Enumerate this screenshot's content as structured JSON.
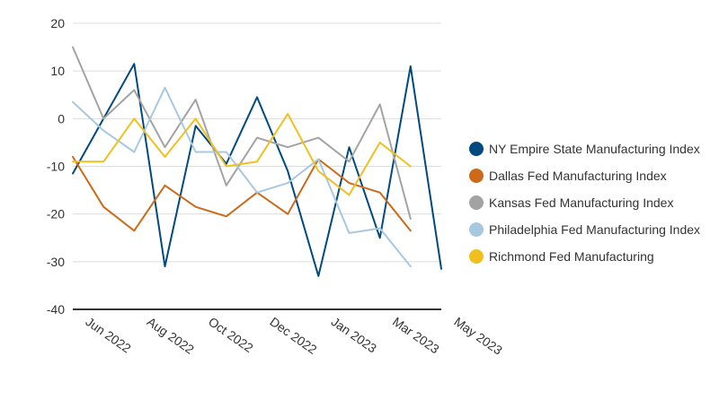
{
  "chart_data": {
    "type": "line",
    "title": "",
    "xlabel": "",
    "ylabel": "",
    "ylim": [
      -40,
      20
    ],
    "y_ticks": [
      20,
      10,
      0,
      -10,
      -20,
      -30,
      -40
    ],
    "x_labels": [
      "Jun 2022",
      "Aug 2022",
      "Oct 2022",
      "Dec 2022",
      "Jan 2023",
      "Mar 2023",
      "May 2023"
    ],
    "x_label_positions": [
      0.5,
      2.5,
      4.5,
      6.5,
      8.5,
      10.5,
      12.5
    ],
    "x_count": 13,
    "grid": true,
    "legend_position": "right",
    "series": [
      {
        "name": "NY Empire State Manufacturing Index",
        "color": "#004a80",
        "values": [
          -11.5,
          0,
          11.5,
          -31,
          -1.5,
          -9.5,
          4.5,
          -11,
          -33,
          -6,
          -25,
          11,
          -31.5
        ]
      },
      {
        "name": "Dallas Fed Manufacturing Index",
        "color": "#cc6a1a",
        "values": [
          -8,
          -18.5,
          -23.5,
          -14,
          -18.5,
          -20.5,
          -15.5,
          -20,
          -8.5,
          -13.5,
          -15.5,
          -23.5,
          null
        ]
      },
      {
        "name": "Kansas Fed Manufacturing Index",
        "color": "#a3a3a3",
        "values": [
          15,
          0,
          6,
          -6,
          4,
          -14,
          -4,
          -6,
          -4,
          -9,
          3,
          -21,
          null
        ]
      },
      {
        "name": "Philadelphia Fed Manufacturing Index",
        "color": "#a8c8e0",
        "values": [
          3.5,
          -2.5,
          -7,
          6.5,
          -7,
          -7,
          -15.5,
          -13.5,
          -8.5,
          -24,
          -23,
          -31,
          null
        ]
      },
      {
        "name": "Richmond Fed Manufacturing",
        "color": "#f0c020",
        "values": [
          -9,
          -9,
          0,
          -8,
          0,
          -10,
          -9,
          1,
          -11,
          -16,
          -5,
          -10,
          null
        ]
      }
    ]
  }
}
